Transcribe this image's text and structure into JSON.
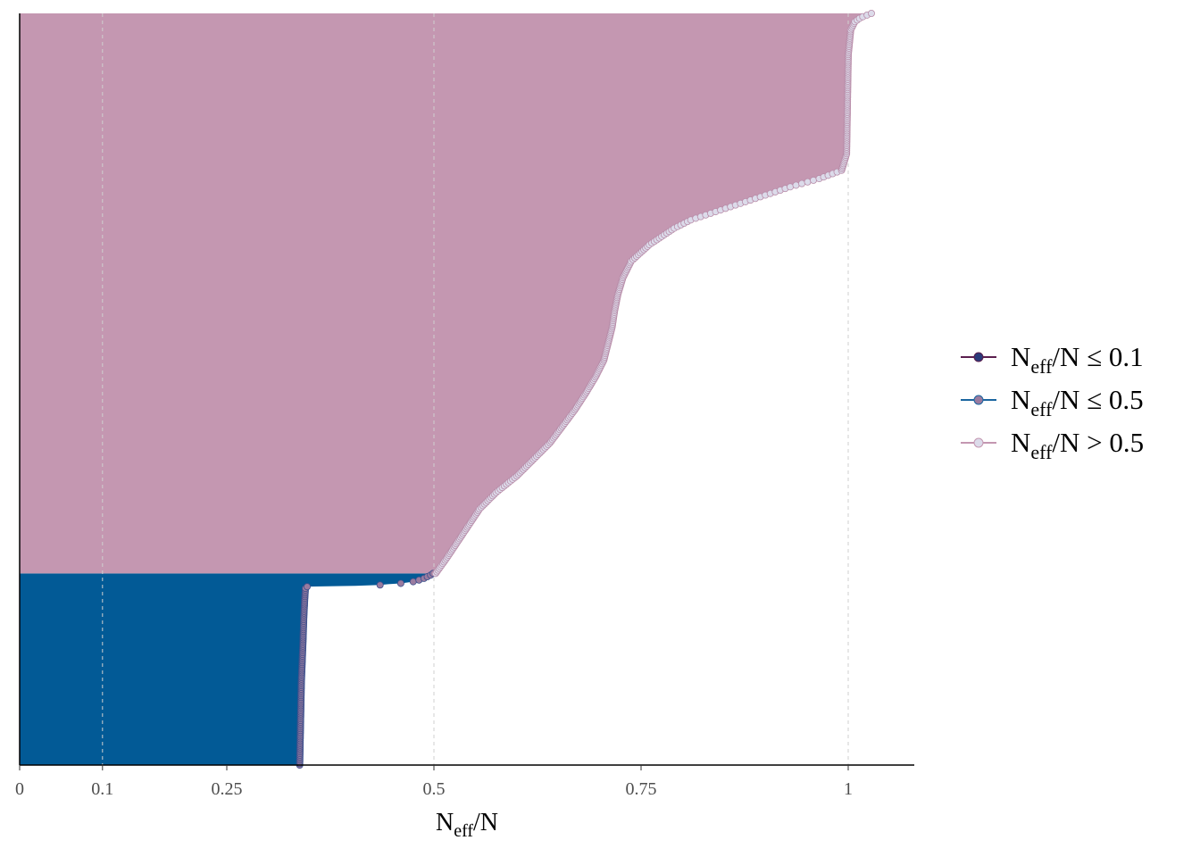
{
  "chart_data": {
    "type": "area",
    "title": "",
    "xlabel": {
      "main": "N",
      "sub": "eff",
      "tail": "/N"
    },
    "ylabel": "",
    "xlim": [
      0,
      1.08
    ],
    "x_ticks": [
      0,
      0.1,
      0.25,
      0.5,
      0.75,
      1
    ],
    "x_tick_labels": [
      "0",
      "0.1",
      "0.25",
      "0.5",
      "0.75",
      "1"
    ],
    "grid_vertical_dashed_at": [
      0.1,
      0.5,
      1
    ],
    "n_parameters": 910,
    "series": [
      {
        "name": "N_eff/N ≤ 0.5",
        "fill_color": "#025a96",
        "point_fill": "#9a7b9f",
        "point_stroke": "#3a4f8c",
        "profile": [
          [
            0,
            0.338
          ],
          [
            50,
            0.339
          ],
          [
            100,
            0.34
          ],
          [
            150,
            0.342
          ],
          [
            180,
            0.343
          ],
          [
            200,
            0.344
          ],
          [
            215,
            0.345
          ],
          [
            216,
            0.347
          ],
          [
            217,
            0.405
          ],
          [
            218,
            0.435
          ],
          [
            219,
            0.445
          ],
          [
            220,
            0.46
          ],
          [
            221,
            0.468
          ],
          [
            222,
            0.475
          ],
          [
            224,
            0.482
          ],
          [
            226,
            0.488
          ],
          [
            228,
            0.492
          ],
          [
            230,
            0.496
          ],
          [
            232,
            0.499
          ]
        ]
      },
      {
        "name": "N_eff/N > 0.5",
        "fill_color": "#c497b1",
        "point_fill": "#dcdbea",
        "point_stroke": "#b88ca8",
        "profile": [
          [
            232,
            0.502
          ],
          [
            250,
            0.515
          ],
          [
            280,
            0.535
          ],
          [
            310,
            0.555
          ],
          [
            330,
            0.575
          ],
          [
            350,
            0.6
          ],
          [
            370,
            0.62
          ],
          [
            390,
            0.64
          ],
          [
            410,
            0.655
          ],
          [
            430,
            0.67
          ],
          [
            450,
            0.683
          ],
          [
            470,
            0.695
          ],
          [
            490,
            0.705
          ],
          [
            510,
            0.71
          ],
          [
            530,
            0.715
          ],
          [
            550,
            0.718
          ],
          [
            570,
            0.722
          ],
          [
            590,
            0.728
          ],
          [
            610,
            0.738
          ],
          [
            630,
            0.76
          ],
          [
            650,
            0.79
          ],
          [
            660,
            0.81
          ],
          [
            670,
            0.84
          ],
          [
            680,
            0.87
          ],
          [
            690,
            0.9
          ],
          [
            700,
            0.93
          ],
          [
            710,
            0.965
          ],
          [
            720,
            0.992
          ],
          [
            740,
            0.998
          ],
          [
            800,
            0.999
          ],
          [
            860,
            1.0
          ],
          [
            890,
            1.003
          ],
          [
            900,
            1.008
          ],
          [
            905,
            1.015
          ],
          [
            910,
            1.028
          ]
        ]
      }
    ],
    "legend": {
      "position": "right",
      "items": [
        {
          "main": "N",
          "sub": "eff",
          "tail": "/N ",
          "op": "≤",
          "value": " 0.1",
          "line_color": "#5b1f4e",
          "point_fill": "#2a3a7a"
        },
        {
          "main": "N",
          "sub": "eff",
          "tail": "/N ",
          "op": "≤",
          "value": " 0.5",
          "line_color": "#1a65a0",
          "point_fill": "#9a7b9f"
        },
        {
          "main": "N",
          "sub": "eff",
          "tail": "/N ",
          "op": ">",
          "value": " 0.5",
          "line_color": "#c497b1",
          "point_fill": "#dcdbea"
        }
      ]
    }
  }
}
